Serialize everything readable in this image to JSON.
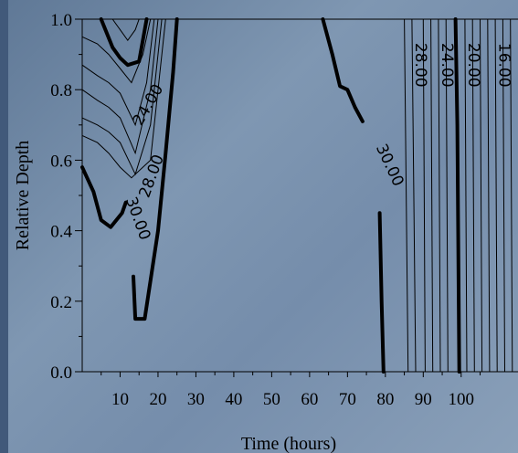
{
  "chart_data": {
    "type": "contour",
    "xlabel": "Time (hours)",
    "ylabel": "Relative Depth",
    "xlim": [
      0,
      115
    ],
    "ylim": [
      0,
      1
    ],
    "x_ticks": [
      10,
      20,
      30,
      40,
      50,
      60,
      70,
      80,
      90,
      100
    ],
    "y_ticks": [
      "0.0",
      "0.2",
      "0.4",
      "0.6",
      "0.8",
      "1.0"
    ],
    "contour_labels": [
      {
        "text": "24.00",
        "x": 18.5,
        "y": 0.75
      },
      {
        "text": "28.00",
        "x": 19.5,
        "y": 0.55
      },
      {
        "text": "30.00",
        "x": 13.5,
        "y": 0.43
      },
      {
        "text": "30.00",
        "x": 80,
        "y": 0.58
      },
      {
        "text": "28.00",
        "x": 88,
        "y": 0.87
      },
      {
        "text": "24.00",
        "x": 95,
        "y": 0.87
      },
      {
        "text": "20.00",
        "x": 102,
        "y": 0.87
      },
      {
        "text": "16.00",
        "x": 110,
        "y": 0.87
      }
    ],
    "contours": [
      {
        "level": "thick",
        "points": [
          [
            5,
            1.0
          ],
          [
            8,
            0.92
          ],
          [
            10,
            0.89
          ],
          [
            12,
            0.87
          ],
          [
            15,
            0.88
          ],
          [
            17,
            1.0
          ]
        ]
      },
      {
        "level": "thick",
        "points": [
          [
            0,
            0.58
          ],
          [
            3,
            0.51
          ],
          [
            5,
            0.43
          ],
          [
            7.5,
            0.41
          ],
          [
            10.5,
            0.45
          ],
          [
            11.5,
            0.48
          ]
        ]
      },
      {
        "level": "thick",
        "points": [
          [
            13.5,
            0.27
          ],
          [
            14,
            0.15
          ],
          [
            16.5,
            0.15
          ],
          [
            20,
            0.4
          ],
          [
            22,
            0.62
          ],
          [
            24,
            0.85
          ],
          [
            25,
            1.0
          ]
        ]
      },
      {
        "level": "thick",
        "points": [
          [
            63.5,
            1.0
          ],
          [
            66,
            0.9
          ],
          [
            68,
            0.81
          ],
          [
            70,
            0.8
          ],
          [
            72,
            0.75
          ],
          [
            74,
            0.71
          ]
        ]
      },
      {
        "level": "thick",
        "points": [
          [
            78.5,
            0.45
          ],
          [
            79,
            0.2
          ],
          [
            79.5,
            0.0
          ]
        ]
      },
      {
        "level": "thick",
        "points": [
          [
            98.5,
            1.0
          ],
          [
            99,
            0.7
          ],
          [
            99.5,
            0.0
          ]
        ]
      },
      {
        "level": "thin",
        "points": [
          [
            0,
            0.95
          ],
          [
            4,
            0.93
          ],
          [
            7,
            0.9
          ],
          [
            10,
            0.86
          ],
          [
            13,
            0.82
          ],
          [
            16,
            0.9
          ],
          [
            18,
            1.0
          ]
        ]
      },
      {
        "level": "thin",
        "points": [
          [
            0,
            0.87
          ],
          [
            4,
            0.84
          ],
          [
            7,
            0.82
          ],
          [
            10,
            0.79
          ],
          [
            14,
            0.7
          ],
          [
            17,
            0.82
          ],
          [
            19,
            1.0
          ]
        ]
      },
      {
        "level": "thin",
        "points": [
          [
            0,
            0.8
          ],
          [
            4,
            0.77
          ],
          [
            7,
            0.75
          ],
          [
            10,
            0.72
          ],
          [
            14,
            0.62
          ],
          [
            18,
            0.8
          ],
          [
            20,
            1.0
          ]
        ]
      },
      {
        "level": "thin",
        "points": [
          [
            0,
            0.72
          ],
          [
            4,
            0.7
          ],
          [
            7,
            0.68
          ],
          [
            10,
            0.65
          ],
          [
            14,
            0.56
          ],
          [
            18,
            0.7
          ],
          [
            21,
            1.0
          ]
        ]
      },
      {
        "level": "thin",
        "points": [
          [
            0,
            0.67
          ],
          [
            4,
            0.65
          ],
          [
            7,
            0.62
          ],
          [
            10,
            0.58
          ],
          [
            13,
            0.55
          ],
          [
            18,
            0.6
          ],
          [
            22,
            1.0
          ]
        ]
      },
      {
        "level": "thin",
        "points": [
          [
            8,
            1.0
          ],
          [
            10,
            0.97
          ],
          [
            12,
            0.94
          ],
          [
            14,
            0.97
          ],
          [
            15,
            1.0
          ]
        ]
      },
      {
        "level": "thin",
        "points": [
          [
            85,
            1.0
          ],
          [
            86,
            0.0
          ]
        ]
      },
      {
        "level": "thin",
        "points": [
          [
            87,
            1.0
          ],
          [
            88,
            0.0
          ]
        ]
      },
      {
        "level": "thin",
        "points": [
          [
            90,
            1.0
          ],
          [
            90.5,
            0.0
          ]
        ]
      },
      {
        "level": "thin",
        "points": [
          [
            92,
            1.0
          ],
          [
            92.5,
            0.0
          ]
        ]
      },
      {
        "level": "thin",
        "points": [
          [
            94,
            1.0
          ],
          [
            94.5,
            0.0
          ]
        ]
      },
      {
        "level": "thin",
        "points": [
          [
            96,
            1.0
          ],
          [
            96.5,
            0.0
          ]
        ]
      },
      {
        "level": "thin",
        "points": [
          [
            101,
            1.0
          ],
          [
            101.5,
            0.0
          ]
        ]
      },
      {
        "level": "thin",
        "points": [
          [
            103,
            1.0
          ],
          [
            103.5,
            0.0
          ]
        ]
      },
      {
        "level": "thin",
        "points": [
          [
            105,
            1.0
          ],
          [
            105.5,
            0.0
          ]
        ]
      },
      {
        "level": "thin",
        "points": [
          [
            107,
            1.0
          ],
          [
            107.5,
            0.0
          ]
        ]
      },
      {
        "level": "thin",
        "points": [
          [
            109,
            1.0
          ],
          [
            109.5,
            0.0
          ]
        ]
      },
      {
        "level": "thin",
        "points": [
          [
            111,
            1.0
          ],
          [
            111.5,
            0.0
          ]
        ]
      },
      {
        "level": "thin",
        "points": [
          [
            113,
            1.0
          ],
          [
            113.5,
            0.0
          ]
        ]
      }
    ]
  }
}
